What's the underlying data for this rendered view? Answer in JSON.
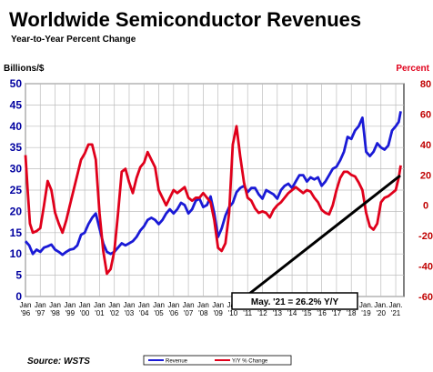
{
  "chart_data": {
    "type": "line",
    "title": "Worldwide Semiconductor Revenues",
    "subtitle": "Year-to-Year Percent Change",
    "ylabel_left": "Billions/$",
    "ylabel_right": "Percent",
    "ylim_left": [
      0,
      50
    ],
    "ylim_right": [
      -60,
      80
    ],
    "yticks_left": [
      "0",
      "5",
      "10",
      "15",
      "20",
      "25",
      "30",
      "35",
      "40",
      "45",
      "50"
    ],
    "yticks_right": [
      "-60",
      "-40",
      "-20",
      "0",
      "20",
      "40",
      "60",
      "80"
    ],
    "xticks": [
      {
        "top": "Jan",
        "bottom": "'96"
      },
      {
        "top": "Jan",
        "bottom": "'97"
      },
      {
        "top": "Jan",
        "bottom": "'98"
      },
      {
        "top": "Jan",
        "bottom": "'99"
      },
      {
        "top": "Jan",
        "bottom": "'00"
      },
      {
        "top": "Jan",
        "bottom": "'01"
      },
      {
        "top": "Jan",
        "bottom": "'02"
      },
      {
        "top": "Jan",
        "bottom": "'03"
      },
      {
        "top": "Jan",
        "bottom": "'04"
      },
      {
        "top": "Jan",
        "bottom": "'05"
      },
      {
        "top": "Jan",
        "bottom": "'06"
      },
      {
        "top": "Jan",
        "bottom": "'07"
      },
      {
        "top": "Jan",
        "bottom": "'08"
      },
      {
        "top": "Jan",
        "bottom": "'09"
      },
      {
        "top": "Jan",
        "bottom": "'10"
      },
      {
        "top": "Jan",
        "bottom": "'11"
      },
      {
        "top": "Jan",
        "bottom": "'12"
      },
      {
        "top": "Jan",
        "bottom": "'13"
      },
      {
        "top": "Jan",
        "bottom": "'14"
      },
      {
        "top": "Jan",
        "bottom": "'15"
      },
      {
        "top": "Jan",
        "bottom": "'16"
      },
      {
        "top": "Jan",
        "bottom": "'17"
      },
      {
        "top": "Jan.",
        "bottom": "'18"
      },
      {
        "top": "Jan.",
        "bottom": "'19"
      },
      {
        "top": "Jan.",
        "bottom": "'20"
      },
      {
        "top": "Jan.",
        "bottom": "'21"
      }
    ],
    "grid": true,
    "legend_position": "bottom-center",
    "source": "Source: WSTS",
    "annotation": "May. '21 = 26.2% Y/Y",
    "series": [
      {
        "name": "Revenue",
        "axis": "left",
        "color": "#1a1ad6",
        "points": [
          [
            1996.0,
            13.0
          ],
          [
            1996.25,
            12.0
          ],
          [
            1996.5,
            10.0
          ],
          [
            1996.75,
            11.0
          ],
          [
            1997.0,
            10.5
          ],
          [
            1997.25,
            11.5
          ],
          [
            1997.5,
            11.8
          ],
          [
            1997.75,
            12.2
          ],
          [
            1998.0,
            11.0
          ],
          [
            1998.25,
            10.5
          ],
          [
            1998.5,
            9.8
          ],
          [
            1998.75,
            10.5
          ],
          [
            1999.0,
            11.0
          ],
          [
            1999.25,
            11.2
          ],
          [
            1999.5,
            12.0
          ],
          [
            1999.75,
            14.5
          ],
          [
            2000.0,
            15.0
          ],
          [
            2000.25,
            17.0
          ],
          [
            2000.5,
            18.5
          ],
          [
            2000.75,
            19.5
          ],
          [
            2001.0,
            16.0
          ],
          [
            2001.25,
            12.5
          ],
          [
            2001.5,
            10.5
          ],
          [
            2001.75,
            10.0
          ],
          [
            2002.0,
            10.5
          ],
          [
            2002.25,
            11.5
          ],
          [
            2002.5,
            12.5
          ],
          [
            2002.75,
            12.0
          ],
          [
            2003.0,
            12.5
          ],
          [
            2003.25,
            13.0
          ],
          [
            2003.5,
            14.0
          ],
          [
            2003.75,
            15.5
          ],
          [
            2004.0,
            16.5
          ],
          [
            2004.25,
            18.0
          ],
          [
            2004.5,
            18.5
          ],
          [
            2004.75,
            18.0
          ],
          [
            2005.0,
            17.0
          ],
          [
            2005.25,
            18.0
          ],
          [
            2005.5,
            19.5
          ],
          [
            2005.75,
            20.5
          ],
          [
            2006.0,
            19.5
          ],
          [
            2006.25,
            20.5
          ],
          [
            2006.5,
            22.0
          ],
          [
            2006.75,
            21.5
          ],
          [
            2007.0,
            19.5
          ],
          [
            2007.25,
            20.5
          ],
          [
            2007.5,
            22.5
          ],
          [
            2007.75,
            23.0
          ],
          [
            2008.0,
            21.0
          ],
          [
            2008.25,
            21.5
          ],
          [
            2008.5,
            23.5
          ],
          [
            2008.75,
            19.5
          ],
          [
            2009.0,
            14.0
          ],
          [
            2009.25,
            16.0
          ],
          [
            2009.5,
            19.0
          ],
          [
            2009.75,
            21.0
          ],
          [
            2010.0,
            22.0
          ],
          [
            2010.25,
            24.5
          ],
          [
            2010.5,
            25.5
          ],
          [
            2010.75,
            26.0
          ],
          [
            2011.0,
            24.5
          ],
          [
            2011.25,
            25.5
          ],
          [
            2011.5,
            25.5
          ],
          [
            2011.75,
            24.0
          ],
          [
            2012.0,
            23.0
          ],
          [
            2012.25,
            25.0
          ],
          [
            2012.5,
            24.5
          ],
          [
            2012.75,
            24.0
          ],
          [
            2013.0,
            23.0
          ],
          [
            2013.25,
            25.0
          ],
          [
            2013.5,
            26.0
          ],
          [
            2013.75,
            26.5
          ],
          [
            2014.0,
            25.5
          ],
          [
            2014.25,
            27.0
          ],
          [
            2014.5,
            28.5
          ],
          [
            2014.75,
            28.5
          ],
          [
            2015.0,
            27.0
          ],
          [
            2015.25,
            28.0
          ],
          [
            2015.5,
            27.5
          ],
          [
            2015.75,
            28.0
          ],
          [
            2016.0,
            26.0
          ],
          [
            2016.25,
            27.0
          ],
          [
            2016.5,
            28.5
          ],
          [
            2016.75,
            30.0
          ],
          [
            2017.0,
            30.5
          ],
          [
            2017.25,
            32.0
          ],
          [
            2017.5,
            34.0
          ],
          [
            2017.75,
            37.5
          ],
          [
            2018.0,
            37.0
          ],
          [
            2018.25,
            39.0
          ],
          [
            2018.5,
            40.0
          ],
          [
            2018.75,
            42.0
          ],
          [
            2019.0,
            34.0
          ],
          [
            2019.25,
            33.0
          ],
          [
            2019.5,
            34.0
          ],
          [
            2019.75,
            36.0
          ],
          [
            2020.0,
            35.0
          ],
          [
            2020.25,
            34.5
          ],
          [
            2020.5,
            35.5
          ],
          [
            2020.75,
            39.0
          ],
          [
            2021.0,
            40.0
          ],
          [
            2021.2,
            41.0
          ],
          [
            2021.333,
            43.5
          ]
        ]
      },
      {
        "name": "Y/Y % Change",
        "axis": "right",
        "color": "#e0001b",
        "points": [
          [
            1996.0,
            33
          ],
          [
            1996.15,
            10
          ],
          [
            1996.3,
            -12
          ],
          [
            1996.5,
            -18
          ],
          [
            1996.75,
            -17
          ],
          [
            1997.0,
            -15
          ],
          [
            1997.25,
            0
          ],
          [
            1997.5,
            16
          ],
          [
            1997.75,
            10
          ],
          [
            1998.0,
            -5
          ],
          [
            1998.25,
            -12
          ],
          [
            1998.5,
            -18
          ],
          [
            1998.75,
            -10
          ],
          [
            1999.0,
            0
          ],
          [
            1999.25,
            10
          ],
          [
            1999.5,
            20
          ],
          [
            1999.75,
            30
          ],
          [
            2000.0,
            34
          ],
          [
            2000.25,
            40
          ],
          [
            2000.5,
            40
          ],
          [
            2000.75,
            30
          ],
          [
            2001.0,
            -5
          ],
          [
            2001.25,
            -30
          ],
          [
            2001.5,
            -45
          ],
          [
            2001.75,
            -42
          ],
          [
            2002.0,
            -30
          ],
          [
            2002.25,
            -5
          ],
          [
            2002.5,
            22
          ],
          [
            2002.75,
            24
          ],
          [
            2003.0,
            15
          ],
          [
            2003.25,
            8
          ],
          [
            2003.5,
            18
          ],
          [
            2003.75,
            25
          ],
          [
            2004.0,
            28
          ],
          [
            2004.25,
            35
          ],
          [
            2004.5,
            30
          ],
          [
            2004.75,
            25
          ],
          [
            2005.0,
            10
          ],
          [
            2005.25,
            5
          ],
          [
            2005.5,
            0
          ],
          [
            2005.75,
            5
          ],
          [
            2006.0,
            10
          ],
          [
            2006.25,
            8
          ],
          [
            2006.5,
            10
          ],
          [
            2006.75,
            12
          ],
          [
            2007.0,
            5
          ],
          [
            2007.25,
            3
          ],
          [
            2007.5,
            5
          ],
          [
            2007.75,
            5
          ],
          [
            2008.0,
            8
          ],
          [
            2008.25,
            5
          ],
          [
            2008.5,
            2
          ],
          [
            2008.75,
            -10
          ],
          [
            2009.0,
            -28
          ],
          [
            2009.25,
            -30
          ],
          [
            2009.5,
            -25
          ],
          [
            2009.75,
            -5
          ],
          [
            2010.0,
            40
          ],
          [
            2010.25,
            52
          ],
          [
            2010.5,
            32
          ],
          [
            2010.75,
            15
          ],
          [
            2011.0,
            5
          ],
          [
            2011.25,
            3
          ],
          [
            2011.5,
            -2
          ],
          [
            2011.75,
            -5
          ],
          [
            2012.0,
            -4
          ],
          [
            2012.25,
            -5
          ],
          [
            2012.5,
            -8
          ],
          [
            2012.75,
            -3
          ],
          [
            2013.0,
            0
          ],
          [
            2013.25,
            2
          ],
          [
            2013.5,
            5
          ],
          [
            2013.75,
            8
          ],
          [
            2014.0,
            10
          ],
          [
            2014.25,
            12
          ],
          [
            2014.5,
            10
          ],
          [
            2014.75,
            8
          ],
          [
            2015.0,
            10
          ],
          [
            2015.25,
            9
          ],
          [
            2015.5,
            5
          ],
          [
            2015.75,
            2
          ],
          [
            2016.0,
            -3
          ],
          [
            2016.25,
            -5
          ],
          [
            2016.5,
            -6
          ],
          [
            2016.75,
            0
          ],
          [
            2017.0,
            10
          ],
          [
            2017.25,
            18
          ],
          [
            2017.5,
            22
          ],
          [
            2017.75,
            22
          ],
          [
            2018.0,
            20
          ],
          [
            2018.25,
            19
          ],
          [
            2018.5,
            15
          ],
          [
            2018.75,
            10
          ],
          [
            2019.0,
            -5
          ],
          [
            2019.25,
            -14
          ],
          [
            2019.5,
            -16
          ],
          [
            2019.75,
            -12
          ],
          [
            2020.0,
            2
          ],
          [
            2020.25,
            5
          ],
          [
            2020.5,
            6
          ],
          [
            2020.75,
            8
          ],
          [
            2021.0,
            10
          ],
          [
            2021.2,
            18
          ],
          [
            2021.333,
            26.2
          ]
        ]
      }
    ]
  }
}
